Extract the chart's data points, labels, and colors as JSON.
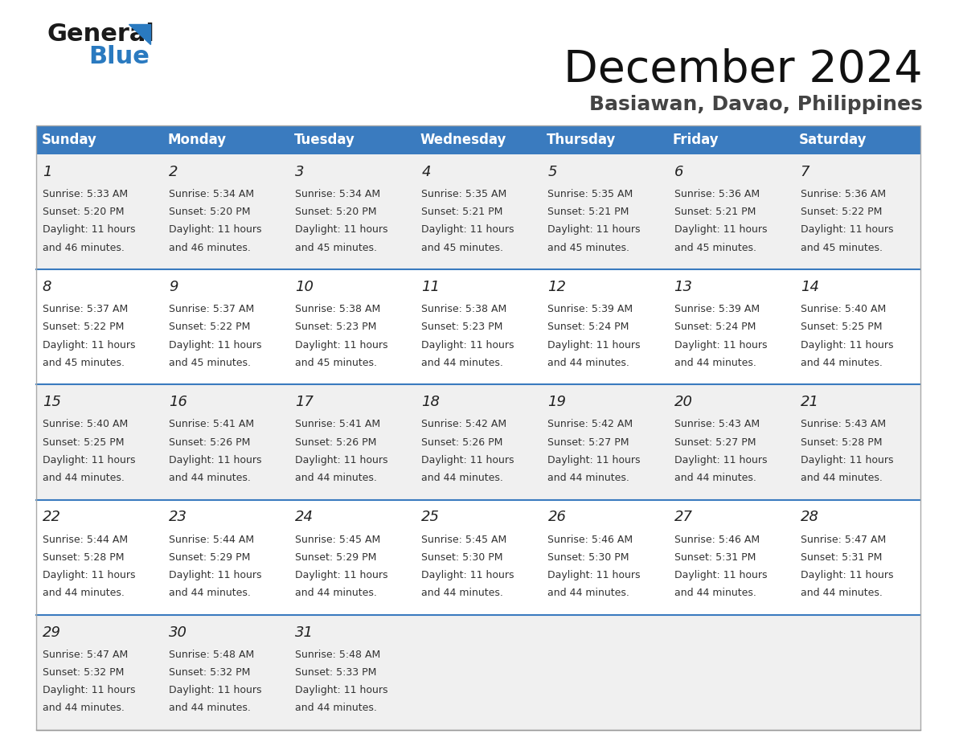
{
  "title": "December 2024",
  "subtitle": "Basiawan, Davao, Philippines",
  "header_color": "#3a7bbf",
  "header_text_color": "#ffffff",
  "days_of_week": [
    "Sunday",
    "Monday",
    "Tuesday",
    "Wednesday",
    "Thursday",
    "Friday",
    "Saturday"
  ],
  "bg_color": "#ffffff",
  "cell_bg_even": "#f0f0f0",
  "cell_bg_odd": "#ffffff",
  "row_separator_color": "#3a7bbf",
  "grid_color": "#cccccc",
  "calendar_data": [
    [
      {
        "day": 1,
        "sunrise": "5:33 AM",
        "sunset": "5:20 PM",
        "daylight_hours": 11,
        "daylight_minutes": 46
      },
      {
        "day": 2,
        "sunrise": "5:34 AM",
        "sunset": "5:20 PM",
        "daylight_hours": 11,
        "daylight_minutes": 46
      },
      {
        "day": 3,
        "sunrise": "5:34 AM",
        "sunset": "5:20 PM",
        "daylight_hours": 11,
        "daylight_minutes": 45
      },
      {
        "day": 4,
        "sunrise": "5:35 AM",
        "sunset": "5:21 PM",
        "daylight_hours": 11,
        "daylight_minutes": 45
      },
      {
        "day": 5,
        "sunrise": "5:35 AM",
        "sunset": "5:21 PM",
        "daylight_hours": 11,
        "daylight_minutes": 45
      },
      {
        "day": 6,
        "sunrise": "5:36 AM",
        "sunset": "5:21 PM",
        "daylight_hours": 11,
        "daylight_minutes": 45
      },
      {
        "day": 7,
        "sunrise": "5:36 AM",
        "sunset": "5:22 PM",
        "daylight_hours": 11,
        "daylight_minutes": 45
      }
    ],
    [
      {
        "day": 8,
        "sunrise": "5:37 AM",
        "sunset": "5:22 PM",
        "daylight_hours": 11,
        "daylight_minutes": 45
      },
      {
        "day": 9,
        "sunrise": "5:37 AM",
        "sunset": "5:22 PM",
        "daylight_hours": 11,
        "daylight_minutes": 45
      },
      {
        "day": 10,
        "sunrise": "5:38 AM",
        "sunset": "5:23 PM",
        "daylight_hours": 11,
        "daylight_minutes": 45
      },
      {
        "day": 11,
        "sunrise": "5:38 AM",
        "sunset": "5:23 PM",
        "daylight_hours": 11,
        "daylight_minutes": 44
      },
      {
        "day": 12,
        "sunrise": "5:39 AM",
        "sunset": "5:24 PM",
        "daylight_hours": 11,
        "daylight_minutes": 44
      },
      {
        "day": 13,
        "sunrise": "5:39 AM",
        "sunset": "5:24 PM",
        "daylight_hours": 11,
        "daylight_minutes": 44
      },
      {
        "day": 14,
        "sunrise": "5:40 AM",
        "sunset": "5:25 PM",
        "daylight_hours": 11,
        "daylight_minutes": 44
      }
    ],
    [
      {
        "day": 15,
        "sunrise": "5:40 AM",
        "sunset": "5:25 PM",
        "daylight_hours": 11,
        "daylight_minutes": 44
      },
      {
        "day": 16,
        "sunrise": "5:41 AM",
        "sunset": "5:26 PM",
        "daylight_hours": 11,
        "daylight_minutes": 44
      },
      {
        "day": 17,
        "sunrise": "5:41 AM",
        "sunset": "5:26 PM",
        "daylight_hours": 11,
        "daylight_minutes": 44
      },
      {
        "day": 18,
        "sunrise": "5:42 AM",
        "sunset": "5:26 PM",
        "daylight_hours": 11,
        "daylight_minutes": 44
      },
      {
        "day": 19,
        "sunrise": "5:42 AM",
        "sunset": "5:27 PM",
        "daylight_hours": 11,
        "daylight_minutes": 44
      },
      {
        "day": 20,
        "sunrise": "5:43 AM",
        "sunset": "5:27 PM",
        "daylight_hours": 11,
        "daylight_minutes": 44
      },
      {
        "day": 21,
        "sunrise": "5:43 AM",
        "sunset": "5:28 PM",
        "daylight_hours": 11,
        "daylight_minutes": 44
      }
    ],
    [
      {
        "day": 22,
        "sunrise": "5:44 AM",
        "sunset": "5:28 PM",
        "daylight_hours": 11,
        "daylight_minutes": 44
      },
      {
        "day": 23,
        "sunrise": "5:44 AM",
        "sunset": "5:29 PM",
        "daylight_hours": 11,
        "daylight_minutes": 44
      },
      {
        "day": 24,
        "sunrise": "5:45 AM",
        "sunset": "5:29 PM",
        "daylight_hours": 11,
        "daylight_minutes": 44
      },
      {
        "day": 25,
        "sunrise": "5:45 AM",
        "sunset": "5:30 PM",
        "daylight_hours": 11,
        "daylight_minutes": 44
      },
      {
        "day": 26,
        "sunrise": "5:46 AM",
        "sunset": "5:30 PM",
        "daylight_hours": 11,
        "daylight_minutes": 44
      },
      {
        "day": 27,
        "sunrise": "5:46 AM",
        "sunset": "5:31 PM",
        "daylight_hours": 11,
        "daylight_minutes": 44
      },
      {
        "day": 28,
        "sunrise": "5:47 AM",
        "sunset": "5:31 PM",
        "daylight_hours": 11,
        "daylight_minutes": 44
      }
    ],
    [
      {
        "day": 29,
        "sunrise": "5:47 AM",
        "sunset": "5:32 PM",
        "daylight_hours": 11,
        "daylight_minutes": 44
      },
      {
        "day": 30,
        "sunrise": "5:48 AM",
        "sunset": "5:32 PM",
        "daylight_hours": 11,
        "daylight_minutes": 44
      },
      {
        "day": 31,
        "sunrise": "5:48 AM",
        "sunset": "5:33 PM",
        "daylight_hours": 11,
        "daylight_minutes": 44
      },
      null,
      null,
      null,
      null
    ]
  ],
  "logo_general_color": "#1a1a1a",
  "logo_blue_color": "#2a7ac0",
  "logo_triangle_color": "#2a7ac0",
  "title_fontsize": 40,
  "subtitle_fontsize": 18,
  "header_fontsize": 12,
  "day_num_fontsize": 13,
  "cell_text_fontsize": 9
}
